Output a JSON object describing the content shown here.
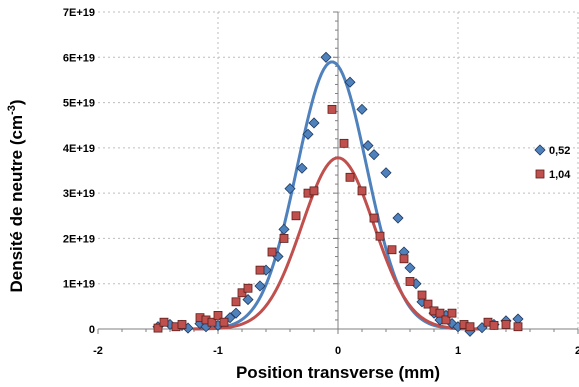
{
  "chart_data": {
    "type": "scatter",
    "xlabel": "Position transverse (mm)",
    "ylabel_main": "Densité de neutre (cm",
    "ylabel_sup": "-3",
    "ylabel_tail": ")",
    "xlim": [
      -2,
      2
    ],
    "ylim": [
      0,
      7e+19
    ],
    "x_ticks": [
      -2,
      -1,
      0,
      1,
      2
    ],
    "y_ticks": [
      0,
      1e+19,
      2e+19,
      3e+19,
      4e+19,
      5e+19,
      6e+19,
      7e+19
    ],
    "x_tick_labels": [
      "-2",
      "-1",
      "0",
      "1",
      "2"
    ],
    "y_tick_labels": [
      "0",
      "1E+19",
      "2E+19",
      "3E+19",
      "4E+19",
      "5E+19",
      "6E+19",
      "7E+19"
    ],
    "grid": true,
    "legend_position": "right",
    "series": [
      {
        "name": "0,52",
        "marker": "diamond",
        "color": "#4f81bd",
        "edge": "#1f3a5f",
        "points": [
          [
            -1.5,
            5e+17
          ],
          [
            -1.4,
            1e+18
          ],
          [
            -1.3,
            8e+17
          ],
          [
            -1.25,
            2e+17
          ],
          [
            -1.15,
            1.2e+18
          ],
          [
            -1.1,
            5e+17
          ],
          [
            -1.0,
            8e+17
          ],
          [
            -0.9,
            2.5e+18
          ],
          [
            -0.85,
            3.5e+18
          ],
          [
            -0.75,
            6.5e+18
          ],
          [
            -0.65,
            9.5e+18
          ],
          [
            -0.6,
            1.3e+19
          ],
          [
            -0.5,
            1.6e+19
          ],
          [
            -0.45,
            2.2e+19
          ],
          [
            -0.4,
            3.1e+19
          ],
          [
            -0.3,
            3.55e+19
          ],
          [
            -0.25,
            4.3e+19
          ],
          [
            -0.2,
            4.55e+19
          ],
          [
            -0.1,
            6e+19
          ],
          [
            0.1,
            5.45e+19
          ],
          [
            0.2,
            4.85e+19
          ],
          [
            0.25,
            4.05e+19
          ],
          [
            0.3,
            3.85e+19
          ],
          [
            0.4,
            3.45e+19
          ],
          [
            0.5,
            2.45e+19
          ],
          [
            0.55,
            1.7e+19
          ],
          [
            0.6,
            1.35e+19
          ],
          [
            0.65,
            1e+19
          ],
          [
            0.7,
            6e+18
          ],
          [
            0.8,
            3.5e+18
          ],
          [
            0.85,
            2e+18
          ],
          [
            0.9,
            3e+18
          ],
          [
            0.95,
            1.2e+18
          ],
          [
            1.0,
            5e+17
          ],
          [
            1.1,
            -5e+17
          ],
          [
            1.2,
            3e+17
          ],
          [
            1.3,
            1e+18
          ],
          [
            1.4,
            1.8e+18
          ],
          [
            1.5,
            2.2e+18
          ]
        ],
        "fit": {
          "amplitude": 5.9e+19,
          "center": -0.05,
          "sigma": 0.29
        }
      },
      {
        "name": "1,04",
        "marker": "square",
        "color": "#c0504d",
        "edge": "#5a1d1b",
        "points": [
          [
            -1.5,
            2e+17
          ],
          [
            -1.45,
            1.5e+18
          ],
          [
            -1.35,
            5e+17
          ],
          [
            -1.3,
            1e+18
          ],
          [
            -1.15,
            2.5e+18
          ],
          [
            -1.1,
            2e+18
          ],
          [
            -1.05,
            1.5e+18
          ],
          [
            -1.0,
            3e+18
          ],
          [
            -0.95,
            1.5e+18
          ],
          [
            -0.85,
            6e+18
          ],
          [
            -0.8,
            8e+18
          ],
          [
            -0.75,
            9e+18
          ],
          [
            -0.65,
            1.3e+19
          ],
          [
            -0.55,
            1.7e+19
          ],
          [
            -0.45,
            2e+19
          ],
          [
            -0.35,
            2.5e+19
          ],
          [
            -0.25,
            3e+19
          ],
          [
            -0.2,
            3.05e+19
          ],
          [
            -0.05,
            4.85e+19
          ],
          [
            0.05,
            4.1e+19
          ],
          [
            0.1,
            3.35e+19
          ],
          [
            0.2,
            3.05e+19
          ],
          [
            0.3,
            2.45e+19
          ],
          [
            0.35,
            2.05e+19
          ],
          [
            0.45,
            1.75e+19
          ],
          [
            0.55,
            1.55e+19
          ],
          [
            0.6,
            1.05e+19
          ],
          [
            0.7,
            7.5e+18
          ],
          [
            0.75,
            5.5e+18
          ],
          [
            0.8,
            4e+18
          ],
          [
            0.85,
            3.5e+18
          ],
          [
            0.9,
            2e+18
          ],
          [
            0.95,
            3.5e+18
          ],
          [
            1.05,
            1e+18
          ],
          [
            1.1,
            5e+17
          ],
          [
            1.25,
            1.5e+18
          ],
          [
            1.3,
            8e+17
          ],
          [
            1.4,
            1e+18
          ],
          [
            1.5,
            5e+17
          ]
        ],
        "fit": {
          "amplitude": 3.78e+19,
          "center": 0.0,
          "sigma": 0.3
        }
      }
    ]
  }
}
